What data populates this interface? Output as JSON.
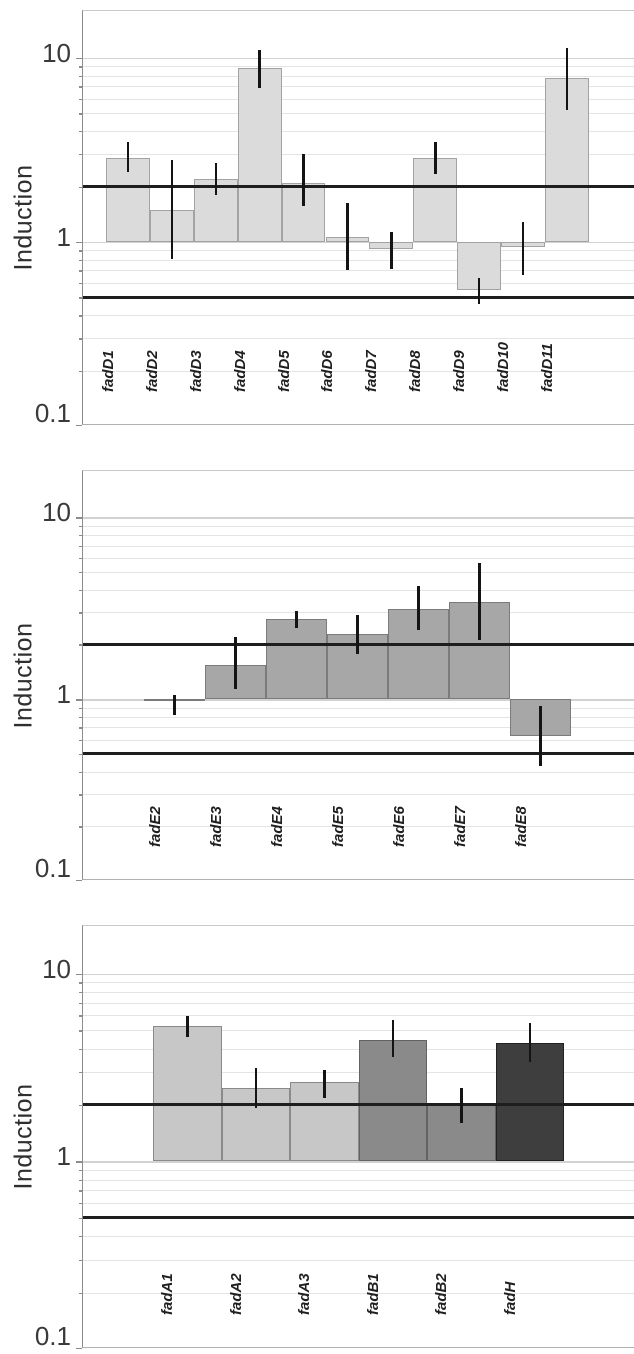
{
  "figure": {
    "description": "Three stacked log-scale bar panels of gene induction with error bars",
    "background_color": "#ffffff",
    "reference_line_color": "#1e1e1e",
    "error_bar_color": "#141414"
  },
  "chart_data": [
    {
      "type": "bar",
      "title": "",
      "ylabel": "Induction",
      "xlabel": "",
      "yscale": "log",
      "ylim": [
        0.1,
        18
      ],
      "ytick_labels": [
        "10",
        "1",
        "0.1"
      ],
      "ytick_values": [
        10,
        1,
        0.1
      ],
      "grid": "on",
      "legend": "none",
      "baseline": 1,
      "reference_lines": [
        2,
        0.5
      ],
      "categories": [
        "fadD1",
        "fadD2",
        "fadD3",
        "fadD4",
        "fadD5",
        "fadD6",
        "fadD7",
        "fadD8",
        "fadD9",
        "fadD10",
        "fadD11"
      ],
      "values": [
        2.85,
        1.5,
        2.2,
        8.8,
        2.1,
        1.06,
        0.92,
        2.85,
        0.55,
        0.94,
        7.8
      ],
      "error_low": [
        2.4,
        0.81,
        1.8,
        6.9,
        1.56,
        0.7,
        0.71,
        2.35,
        0.46,
        0.66,
        5.2
      ],
      "error_high": [
        3.5,
        2.8,
        2.7,
        11.1,
        3.0,
        1.62,
        1.14,
        3.5,
        0.64,
        1.29,
        11.4
      ],
      "bar_fill": [
        "#dbdbdb",
        "#dbdbdb",
        "#dbdbdb",
        "#dbdbdb",
        "#dbdbdb",
        "#dbdbdb",
        "#dbdbdb",
        "#dbdbdb",
        "#dbdbdb",
        "#dbdbdb",
        "#dbdbdb"
      ],
      "bar_border": [
        "#a3a3a3",
        "#a3a3a3",
        "#a3a3a3",
        "#a3a3a3",
        "#a3a3a3",
        "#a3a3a3",
        "#a3a3a3",
        "#a3a3a3",
        "#a3a3a3",
        "#a3a3a3",
        "#a3a3a3"
      ]
    },
    {
      "type": "bar",
      "title": "",
      "ylabel": "Induction",
      "xlabel": "",
      "yscale": "log",
      "ylim": [
        0.1,
        18
      ],
      "ytick_labels": [
        "10",
        "1",
        "0.1"
      ],
      "ytick_values": [
        10,
        1,
        0.1
      ],
      "grid": "on",
      "legend": "none",
      "baseline": 1,
      "reference_lines": [
        2,
        0.5
      ],
      "categories": [
        "fadE2",
        "fadE3",
        "fadE4",
        "fadE5",
        "fadE6",
        "fadE7",
        "fadE8"
      ],
      "values": [
        0.98,
        1.54,
        2.77,
        2.28,
        3.12,
        3.42,
        0.63
      ],
      "error_low": [
        0.82,
        1.14,
        2.47,
        1.78,
        2.4,
        2.11,
        0.43
      ],
      "error_high": [
        1.06,
        2.19,
        3.05,
        2.92,
        4.17,
        5.63,
        0.92
      ],
      "bar_fill": [
        "#a7a7a7",
        "#a7a7a7",
        "#a7a7a7",
        "#a7a7a7",
        "#a7a7a7",
        "#a7a7a7",
        "#a7a7a7"
      ],
      "bar_border": [
        "#7b7b7b",
        "#7b7b7b",
        "#7b7b7b",
        "#7b7b7b",
        "#7b7b7b",
        "#7b7b7b",
        "#7b7b7b"
      ]
    },
    {
      "type": "bar",
      "title": "",
      "ylabel": "Induction",
      "xlabel": "",
      "yscale": "log",
      "ylim": [
        0.1,
        18
      ],
      "ytick_labels": [
        "10",
        "1",
        "0.1"
      ],
      "ytick_values": [
        10,
        1,
        0.1
      ],
      "grid": "on",
      "legend": "none",
      "baseline": 1,
      "reference_lines": [
        2,
        0.5
      ],
      "categories": [
        "fadA1",
        "fadA2",
        "fadA3",
        "fadB1",
        "fadB2",
        "fadH"
      ],
      "values": [
        5.25,
        2.45,
        2.65,
        4.45,
        2.0,
        4.3
      ],
      "error_low": [
        4.6,
        1.93,
        2.19,
        3.6,
        1.6,
        3.41
      ],
      "error_high": [
        5.95,
        3.16,
        3.08,
        5.65,
        2.45,
        5.45
      ],
      "bar_fill": [
        "#c7c7c7",
        "#c7c7c7",
        "#c7c7c7",
        "#8a8a8a",
        "#8a8a8a",
        "#3e3e3e"
      ],
      "bar_border": [
        "#8a8a8a",
        "#8a8a8a",
        "#8a8a8a",
        "#636363",
        "#636363",
        "#222222"
      ]
    }
  ]
}
